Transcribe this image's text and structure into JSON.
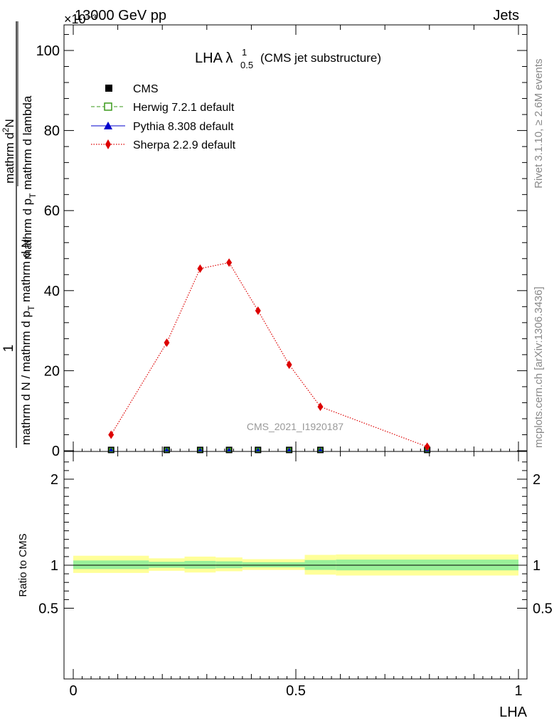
{
  "header": {
    "left": "13000 GeV pp",
    "right": "Jets",
    "exponent": "×10⁻³"
  },
  "side_text": {
    "events": "Rivet 3.1.10, ≥ 2.6M events",
    "source": "mcplots.cern.ch [arXiv:1306.3436]"
  },
  "watermark": "CMS_2021_I1920187",
  "title": {
    "main": "LHA λ",
    "sup": "1",
    "sub": "0.5",
    "suffix": "(CMS jet substructure)"
  },
  "legend": [
    {
      "label": "CMS",
      "color": "#000000",
      "marker": "square-filled",
      "line": "none"
    },
    {
      "label": "Herwig 7.2.1 default",
      "color": "#3a9a1a",
      "marker": "square-open",
      "line": "dashed"
    },
    {
      "label": "Pythia 8.308 default",
      "color": "#0000cc",
      "marker": "triangle",
      "line": "solid"
    },
    {
      "label": "Sherpa 2.2.9 default",
      "color": "#dd0000",
      "marker": "diamond",
      "line": "dotted"
    }
  ],
  "axes": {
    "xlabel": "LHA",
    "ylabel_top_num": "1",
    "ylabel_top_den": "mathrm d N / mathrm d p",
    "ylabel_top_den_sub": "T",
    "ylabel_top_den2": "mathrm d N",
    "ylabel_main_num": "mathrm d",
    "ylabel_main_num_sup": "2",
    "ylabel_main_num2": "N",
    "ylabel_main_den": "mathrm d p",
    "ylabel_main_den_sub": "T",
    "ylabel_main_den2": "mathrm d lambda",
    "ylabel_ratio": "Ratio to CMS"
  },
  "chart_data": {
    "type": "line",
    "x_range": [
      0,
      1
    ],
    "y_range": [
      0,
      105
    ],
    "y_scale_note": "×10⁻³",
    "y_ticks": [
      0,
      20,
      40,
      60,
      80,
      100
    ],
    "x_ticks": [
      0,
      0.5,
      1
    ],
    "x_tick_labels": [
      "0",
      "0.5",
      "1"
    ],
    "ratio_range": [
      0.4,
      2.3
    ],
    "ratio_ticks": [
      0.5,
      1,
      2
    ],
    "ratio_tick_labels": [
      "0.5",
      "1",
      "2"
    ],
    "series": [
      {
        "name": "CMS",
        "x": [
          0.085,
          0.21,
          0.285,
          0.35,
          0.415,
          0.485,
          0.555,
          0.795
        ],
        "y": [
          0.2,
          0.2,
          0.2,
          0.2,
          0.2,
          0.2,
          0.2,
          0.2
        ]
      },
      {
        "name": "Sherpa 2.2.9 default",
        "x": [
          0.085,
          0.21,
          0.285,
          0.35,
          0.415,
          0.485,
          0.555,
          0.795
        ],
        "y": [
          4.0,
          27.0,
          45.5,
          47.0,
          35.0,
          21.5,
          11.0,
          1.0
        ]
      }
    ],
    "ratio_bands": [
      {
        "x0": 0.0,
        "x1": 0.17,
        "yellow": [
          0.91,
          1.11
        ],
        "green": [
          0.955,
          1.055
        ]
      },
      {
        "x0": 0.17,
        "x1": 0.25,
        "yellow": [
          0.935,
          1.08
        ],
        "green": [
          0.97,
          1.04
        ]
      },
      {
        "x0": 0.25,
        "x1": 0.32,
        "yellow": [
          0.915,
          1.1
        ],
        "green": [
          0.96,
          1.05
        ]
      },
      {
        "x0": 0.32,
        "x1": 0.38,
        "yellow": [
          0.93,
          1.09
        ],
        "green": [
          0.965,
          1.045
        ]
      },
      {
        "x0": 0.38,
        "x1": 0.52,
        "yellow": [
          0.945,
          1.07
        ],
        "green": [
          0.975,
          1.035
        ]
      },
      {
        "x0": 0.52,
        "x1": 0.59,
        "yellow": [
          0.89,
          1.12
        ],
        "green": [
          0.945,
          1.06
        ]
      },
      {
        "x0": 0.59,
        "x1": 1.0,
        "yellow": [
          0.88,
          1.125
        ],
        "green": [
          0.94,
          1.065
        ]
      }
    ]
  }
}
